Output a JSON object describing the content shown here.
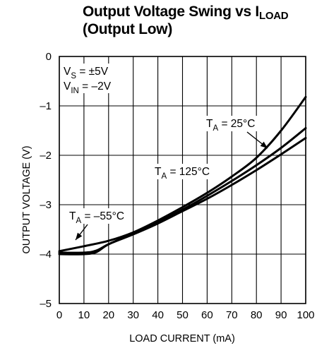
{
  "chart_data": {
    "type": "line",
    "title": {
      "line1_main": "Output Voltage Swing vs I",
      "line1_sub": "LOAD",
      "line2": "(Output Low)"
    },
    "xlabel": "LOAD CURRENT (mA)",
    "ylabel": "OUTPUT VOLTAGE (V)",
    "xlim": [
      0,
      100
    ],
    "ylim": [
      -5,
      0
    ],
    "xticks": [
      0,
      10,
      20,
      30,
      40,
      50,
      60,
      70,
      80,
      90,
      100
    ],
    "yticks": [
      0,
      -1,
      -2,
      -3,
      -4,
      -5
    ],
    "xtick_labels": [
      "0",
      "10",
      "20",
      "30",
      "40",
      "50",
      "60",
      "70",
      "80",
      "90",
      "100"
    ],
    "ytick_labels": [
      "0",
      "–1",
      "–2",
      "–3",
      "–4",
      "–5"
    ],
    "grid": true,
    "conditions": [
      {
        "base": "V",
        "sub": "S",
        "rest": " = ±5V"
      },
      {
        "base": "V",
        "sub": "IN",
        "rest": " = –2V"
      }
    ],
    "series": [
      {
        "name": "T_A = 125°C",
        "x": [
          0,
          10,
          20,
          30,
          40,
          50,
          60,
          70,
          80,
          90,
          100
        ],
        "y": [
          -3.94,
          -3.84,
          -3.73,
          -3.56,
          -3.32,
          -3.05,
          -2.76,
          -2.43,
          -2.05,
          -1.5,
          -0.82
        ]
      },
      {
        "name": "T_A = 25°C",
        "x": [
          0,
          10,
          15,
          20,
          30,
          40,
          50,
          60,
          70,
          80,
          90,
          100
        ],
        "y": [
          -3.97,
          -3.97,
          -3.93,
          -3.8,
          -3.58,
          -3.35,
          -3.1,
          -2.82,
          -2.52,
          -2.2,
          -1.85,
          -1.45
        ]
      },
      {
        "name": "T_A = –55°C",
        "x": [
          0,
          10,
          15,
          20,
          30,
          40,
          50,
          60,
          70,
          80,
          90,
          100
        ],
        "y": [
          -4.0,
          -4.0,
          -3.96,
          -3.8,
          -3.6,
          -3.38,
          -3.13,
          -2.88,
          -2.6,
          -2.3,
          -1.98,
          -1.65
        ]
      }
    ],
    "annotations": [
      {
        "base": "T",
        "sub": "A",
        "rest": " = 25°C"
      },
      {
        "base": "T",
        "sub": "A",
        "rest": " = 125°C"
      },
      {
        "base": "T",
        "sub": "A",
        "rest": " = –55°C"
      }
    ]
  }
}
